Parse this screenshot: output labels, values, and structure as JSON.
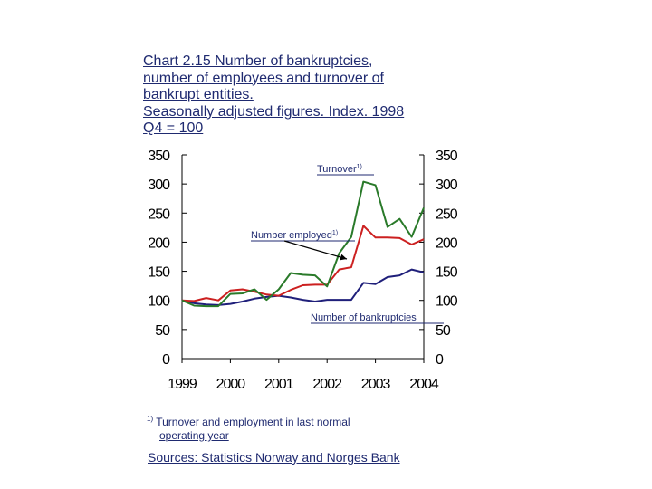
{
  "chart_data": {
    "type": "line",
    "title_lines": [
      "Chart 2.15  Number of bankruptcies,",
      "number of employees and turnover of",
      "bankrupt entities.",
      "Seasonally adjusted figures. Index. 1998",
      "Q4 = 100"
    ],
    "xlabel": "",
    "ylabel": "",
    "x_ticks": [
      "1999",
      "2000",
      "2001",
      "2002",
      "2003",
      "2004"
    ],
    "y_ticks": [
      0,
      50,
      100,
      150,
      200,
      250,
      300,
      350
    ],
    "ylim": [
      0,
      350
    ],
    "xlim": [
      1999.0,
      2004.0
    ],
    "grid": false,
    "series": [
      {
        "name": "Number of bankruptcies",
        "color": "#1f1f7a",
        "x": [
          1999.0,
          1999.25,
          1999.5,
          1999.75,
          2000.0,
          2000.25,
          2000.5,
          2000.75,
          2001.0,
          2001.25,
          2001.5,
          2001.75,
          2002.0,
          2002.25,
          2002.5,
          2002.75,
          2003.0,
          2003.25,
          2003.5,
          2003.75,
          2004.0
        ],
        "y": [
          100,
          95,
          93,
          92,
          94,
          98,
          103,
          106,
          108,
          105,
          101,
          98,
          101,
          101,
          101,
          130,
          128,
          140,
          143,
          153,
          148
        ]
      },
      {
        "name": "Number employed",
        "label_text": "Number employed",
        "label_sup": "1)",
        "color": "#cc2020",
        "x": [
          1999.0,
          1999.25,
          1999.5,
          1999.75,
          2000.0,
          2000.25,
          2000.5,
          2000.75,
          2001.0,
          2001.25,
          2001.5,
          2001.75,
          2002.0,
          2002.25,
          2002.5,
          2002.75,
          2003.0,
          2003.25,
          2003.5,
          2003.75,
          2004.0
        ],
        "y": [
          100,
          99,
          104,
          100,
          117,
          119,
          115,
          110,
          108,
          118,
          126,
          127,
          127,
          153,
          157,
          228,
          208,
          208,
          207,
          196,
          205
        ]
      },
      {
        "name": "Turnover",
        "label_text": "Turnover",
        "label_sup": "1)",
        "color": "#2a7a2a",
        "x": [
          1999.0,
          1999.25,
          1999.5,
          1999.75,
          2000.0,
          2000.25,
          2000.5,
          2000.75,
          2001.0,
          2001.25,
          2001.5,
          2001.75,
          2002.0,
          2002.25,
          2002.5,
          2002.75,
          2003.0,
          2003.25,
          2003.5,
          2003.75,
          2004.0
        ],
        "y": [
          100,
          91,
          90,
          90,
          111,
          112,
          119,
          101,
          119,
          147,
          144,
          143,
          124,
          181,
          209,
          304,
          298,
          226,
          240,
          209,
          259
        ]
      }
    ],
    "annotations": [
      {
        "text": "Turnover",
        "sup": "1)"
      },
      {
        "text": "Number employed",
        "sup": "1)"
      },
      {
        "text": "Number of bankruptcies",
        "sup": ""
      }
    ]
  },
  "footnote": {
    "mark": "1)",
    "line1": " Turnover and employment in last normal",
    "line2": "operating year"
  },
  "source": "Sources: Statistics Norway and Norges Bank"
}
